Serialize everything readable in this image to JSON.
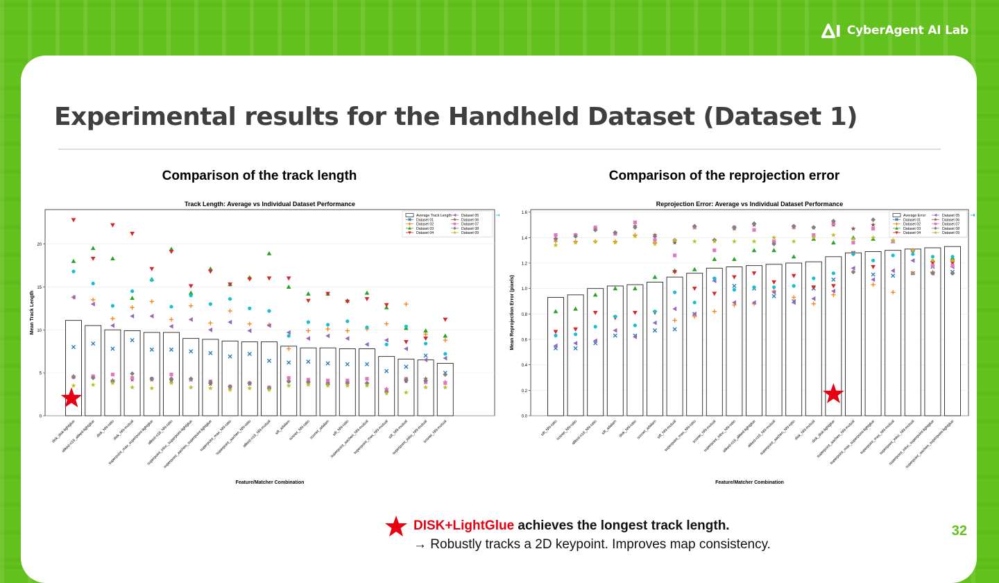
{
  "brand": {
    "name": "CyberAgent AI Lab"
  },
  "slide": {
    "title": "Experimental results for the Handheld Dataset (Dataset 1)",
    "page_number": "32",
    "left_heading": "Comparison of the track length",
    "right_heading": "Comparison of the reprojection error",
    "note_highlight": "DISK+LightGlue",
    "note_rest": " achieves the longest track length.",
    "note_line2": "→ Robustly tracks a 2D keypoint. Improves map consistency.",
    "star_glyph": "★"
  },
  "colors": {
    "accent": "#62c11c",
    "star": "#e60012",
    "title": "#3f3f3f"
  },
  "chart_data": [
    {
      "type": "bar",
      "title": "Track Length: Average vs Individual Dataset Performance",
      "xlabel": "Feature/Matcher Combination",
      "ylabel": "Mean Track Length",
      "ylim": [
        0,
        24
      ],
      "yticks": [
        0,
        5,
        10,
        15,
        20
      ],
      "grid": true,
      "legend_position": "top-right",
      "bar_series_name": "Average Track Length",
      "categories": [
        "disk_disk-lightglue",
        "aliked-n16_aliked-lightglue",
        "disk_NN-ratio",
        "disk_NN-mutual",
        "superpoint_max_superpoint-lightglue",
        "aliked-n16_NN-ratio",
        "superpoint_inloc_superpoint-lightglue",
        "superpoint_aachen_superpoint-lightglue",
        "superpoint_max_NN-ratio",
        "superpoint_aachen_NN-ratio",
        "aliked-n16_NN-mutual",
        "sift_adalam",
        "sosnet_NN-ratio",
        "sosnet_adalam",
        "sift_NN-ratio",
        "superpoint_aachen_NN-mutual",
        "superpoint_max_NN-mutual",
        "sift_NN-mutual",
        "superpoint_inloc_NN-mutual",
        "sosnet_NN-mutual"
      ],
      "values": [
        11.1,
        10.5,
        10.0,
        9.9,
        9.7,
        9.7,
        9.0,
        8.9,
        8.7,
        8.6,
        8.6,
        8.1,
        7.9,
        7.9,
        7.8,
        7.8,
        6.9,
        6.6,
        6.5,
        6.1
      ],
      "series": [
        {
          "name": "Dataset 01",
          "marker": "x",
          "color": "#1f77b4",
          "values": [
            8.0,
            8.4,
            7.8,
            8.8,
            7.7,
            7.7,
            7.5,
            7.3,
            6.9,
            7.2,
            6.4,
            6.2,
            6.3,
            6.1,
            6.0,
            6.0,
            5.2,
            5.7,
            7.0,
            5.0
          ]
        },
        {
          "name": "Dataset 02",
          "marker": "+",
          "color": "#ff7f0e",
          "values": [
            13.8,
            13.5,
            11.3,
            12.6,
            13.3,
            11.2,
            12.8,
            10.8,
            12.2,
            10.7,
            10.6,
            7.8,
            9.9,
            10.1,
            9.9,
            10.1,
            10.7,
            13.0,
            9.5,
            8.8
          ]
        },
        {
          "name": "Dataset 03",
          "marker": "^",
          "color": "#2ca02c",
          "values": [
            18.0,
            19.5,
            18.3,
            13.7,
            15.9,
            19.4,
            14.3,
            17.1,
            15.3,
            16.1,
            18.9,
            15.0,
            14.2,
            14.2,
            13.4,
            14.3,
            12.6,
            10.2,
            9.9,
            9.3
          ]
        },
        {
          "name": "Dataset 04",
          "marker": "v",
          "color": "#d62728",
          "values": [
            22.8,
            18.3,
            22.2,
            21.2,
            17.1,
            19.1,
            15.1,
            16.8,
            15.3,
            15.9,
            16.0,
            16.0,
            13.4,
            14.2,
            13.3,
            13.6,
            12.9,
            8.6,
            9.0,
            11.2
          ]
        },
        {
          "name": "Dataset 05",
          "marker": "<",
          "color": "#9467bd",
          "values": [
            13.8,
            13.0,
            10.5,
            11.6,
            11.6,
            10.4,
            11.2,
            10.0,
            10.9,
            9.9,
            10.5,
            9.7,
            9.0,
            9.3,
            9.0,
            8.3,
            8.8,
            7.8,
            6.5,
            6.7
          ]
        },
        {
          "name": "Dataset 06",
          "marker": "*",
          "color": "#8c564b",
          "values": [
            4.6,
            4.5,
            4.1,
            4.2,
            4.2,
            4.1,
            4.2,
            3.7,
            3.3,
            3.7,
            3.3,
            4.0,
            3.9,
            3.8,
            3.9,
            3.7,
            3.1,
            4.0,
            4.3,
            3.9
          ]
        },
        {
          "name": "Dataset 07",
          "marker": "s",
          "color": "#e377c2",
          "values": [
            4.5,
            4.6,
            4.8,
            4.4,
            4.3,
            4.8,
            4.2,
            4.0,
            3.4,
            3.8,
            3.3,
            4.4,
            4.2,
            4.1,
            4.1,
            4.3,
            3.0,
            4.3,
            3.9,
            3.8
          ]
        },
        {
          "name": "Dataset 08",
          "marker": "D",
          "color": "#7f7f7f",
          "values": [
            4.5,
            4.4,
            4.0,
            4.9,
            4.3,
            4.3,
            4.3,
            3.9,
            3.4,
            3.8,
            3.2,
            4.0,
            3.9,
            3.7,
            3.8,
            3.8,
            2.8,
            4.2,
            4.1,
            4.8
          ]
        },
        {
          "name": "Dataset 09",
          "marker": "*",
          "color": "#bcbd22",
          "values": [
            3.5,
            3.6,
            3.8,
            3.3,
            3.2,
            3.8,
            3.3,
            3.2,
            3.0,
            3.2,
            3.0,
            3.5,
            3.6,
            3.5,
            3.5,
            3.5,
            2.6,
            2.7,
            3.3,
            3.3
          ]
        },
        {
          "name": "Dataset 10",
          "marker": "o",
          "color": "#17becf",
          "values": [
            16.8,
            15.4,
            12.8,
            14.5,
            15.8,
            12.7,
            14.0,
            13.0,
            13.6,
            12.5,
            12.2,
            9.3,
            10.9,
            10.6,
            11.0,
            10.3,
            8.3,
            10.4,
            8.4,
            7.2
          ]
        }
      ]
    },
    {
      "type": "bar",
      "title": "Reprojection Error: Average vs Individual Dataset Performance",
      "xlabel": "Feature/Matcher Combination",
      "ylabel": "Mean Reprojection Error (pixels)",
      "ylim": [
        0,
        1.62
      ],
      "yticks": [
        0.0,
        0.2,
        0.4,
        0.6,
        0.8,
        1.0,
        1.2,
        1.4,
        1.6
      ],
      "grid": true,
      "legend_position": "top-right",
      "bar_series_name": "Average Error",
      "categories": [
        "sift_NN-ratio",
        "sosnet_NN-ratio",
        "aliked-n16_NN-ratio",
        "sift_adalam",
        "disk_NN-ratio",
        "sosnet_adalam",
        "sift_NN-mutual",
        "superpoint_max_NN-ratio",
        "sosnet_NN-mutual",
        "superpoint_inloc_NN-ratio",
        "aliked-n16_aliked-lightglue",
        "aliked-n16_NN-mutual",
        "superpoint_aachen_NN-ratio",
        "disk_NN-mutual",
        "disk_disk-lightglue",
        "superpoint_aachen_NN-mutual",
        "superpoint_max_superpoint-lightglue",
        "superpoint_max_NN-mutual",
        "superpoint_inloc_NN-mutual",
        "superpoint_inloc_superpoint-lightglue",
        "superpoint_aachen_superpoint-lightglue"
      ],
      "values": [
        0.93,
        0.95,
        1.0,
        1.02,
        1.03,
        1.05,
        1.09,
        1.12,
        1.16,
        1.17,
        1.18,
        1.19,
        1.2,
        1.21,
        1.25,
        1.28,
        1.29,
        1.3,
        1.31,
        1.32,
        1.33
      ],
      "series": [
        {
          "name": "Dataset 01",
          "marker": "x",
          "color": "#1f77b4",
          "values": [
            0.53,
            0.53,
            0.57,
            0.63,
            0.63,
            0.67,
            0.68,
            0.8,
            1.07,
            1.02,
            1.0,
            0.94,
            0.9,
            1.0,
            1.07,
            1.28,
            1.11,
            1.1,
            1.12,
            1.17,
            1.13
          ]
        },
        {
          "name": "Dataset 02",
          "marker": "+",
          "color": "#ff7f0e",
          "values": [
            1.37,
            1.37,
            1.37,
            1.37,
            1.42,
            1.36,
            0.75,
            0.78,
            0.82,
            0.87,
            0.88,
            0.98,
            0.93,
            0.88,
            0.95,
            1.28,
            1.03,
            0.97,
            1.12,
            1.13,
            1.22
          ]
        },
        {
          "name": "Dataset 03",
          "marker": "^",
          "color": "#2ca02c",
          "values": [
            0.82,
            0.84,
            0.95,
            1.0,
            1.0,
            1.09,
            1.14,
            1.15,
            1.23,
            1.23,
            1.3,
            1.3,
            1.25,
            1.39,
            1.36,
            1.4,
            1.39,
            1.37,
            1.3,
            1.22,
            1.24
          ]
        },
        {
          "name": "Dataset 04",
          "marker": "v",
          "color": "#d62728",
          "values": [
            0.66,
            0.68,
            0.81,
            0.77,
            0.81,
            0.81,
            1.13,
            1.0,
            0.96,
            1.09,
            1.12,
            1.05,
            1.1,
            1.01,
            1.02,
            1.27,
            1.17,
            1.54,
            1.29,
            1.2,
            1.2
          ]
        },
        {
          "name": "Dataset 05",
          "marker": "<",
          "color": "#9467bd",
          "values": [
            0.55,
            0.57,
            0.59,
            0.67,
            0.62,
            0.73,
            0.84,
            0.8,
            1.06,
            0.89,
            0.89,
            0.97,
            0.89,
            0.92,
            0.98,
            1.16,
            1.07,
            1.14,
            1.22,
            1.12,
            1.17
          ]
        },
        {
          "name": "Dataset 06",
          "marker": "*",
          "color": "#8c564b",
          "values": [
            1.39,
            1.42,
            1.47,
            1.43,
            1.49,
            1.42,
            1.36,
            1.48,
            1.38,
            1.47,
            1.5,
            1.36,
            1.49,
            1.48,
            1.5,
            1.47,
            1.5,
            1.45,
            1.3,
            1.12,
            1.12
          ]
        },
        {
          "name": "Dataset 07",
          "marker": "s",
          "color": "#e377c2",
          "values": [
            1.42,
            1.42,
            1.48,
            1.43,
            1.52,
            1.38,
            1.26,
            1.48,
            1.3,
            1.48,
            1.46,
            1.37,
            1.48,
            1.42,
            1.51,
            1.36,
            1.47,
            1.37,
            1.3,
            1.18,
            1.18
          ]
        },
        {
          "name": "Dataset 08",
          "marker": "D",
          "color": "#7f7f7f",
          "values": [
            1.39,
            1.41,
            1.46,
            1.44,
            1.48,
            1.41,
            1.38,
            1.49,
            1.38,
            1.48,
            1.51,
            1.35,
            1.49,
            1.48,
            1.53,
            1.13,
            1.54,
            1.46,
            1.3,
            1.12,
            1.12
          ]
        },
        {
          "name": "Dataset 09",
          "marker": "*",
          "color": "#bcbd22",
          "values": [
            1.34,
            1.36,
            1.37,
            1.36,
            1.41,
            1.35,
            1.38,
            1.37,
            1.37,
            1.37,
            1.37,
            1.4,
            1.37,
            1.4,
            1.42,
            1.39,
            1.4,
            1.38,
            1.3,
            1.22,
            1.22
          ]
        },
        {
          "name": "Dataset 10",
          "marker": "o",
          "color": "#17becf",
          "values": [
            0.63,
            0.64,
            0.7,
            0.78,
            0.71,
            0.82,
            0.97,
            0.89,
            1.08,
            0.99,
            1.01,
            1.01,
            1.02,
            1.08,
            1.12,
            1.27,
            1.22,
            1.26,
            1.27,
            1.25,
            1.25
          ]
        }
      ]
    }
  ]
}
